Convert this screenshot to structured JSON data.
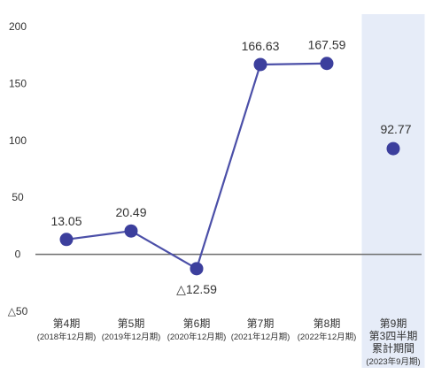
{
  "chart_data": {
    "type": "line",
    "categories": [
      [
        "第4期",
        "(2018年12月期)"
      ],
      [
        "第5期",
        "(2019年12月期)"
      ],
      [
        "第6期",
        "(2020年12月期)"
      ],
      [
        "第7期",
        "(2021年12月期)"
      ],
      [
        "第8期",
        "(2022年12月期)"
      ],
      [
        "第9期",
        "第3四半期",
        "累計期間",
        "(2023年9月期)"
      ]
    ],
    "series": [
      {
        "values": [
          13.05,
          20.49,
          -12.59,
          166.63,
          167.59,
          92.77
        ],
        "labels": [
          "13.05",
          "20.49",
          "△12.59",
          "166.63",
          "167.59",
          "92.77"
        ],
        "connected": [
          true,
          true,
          true,
          true,
          true,
          false
        ]
      }
    ],
    "ylim": [
      -50,
      200
    ],
    "yticks": [
      200,
      150,
      100,
      50,
      0,
      -50
    ],
    "ytick_labels": [
      "200",
      "150",
      "100",
      "50",
      "0",
      "△50"
    ],
    "highlight_category_index": 5,
    "grid": false,
    "title": "",
    "xlabel": "",
    "ylabel": "",
    "colors": {
      "line": "#4b4fa8",
      "marker": "#3c3f9d",
      "highlight": "#e6ecf8",
      "axis": "#6d6d6d",
      "text": "#333333"
    }
  }
}
